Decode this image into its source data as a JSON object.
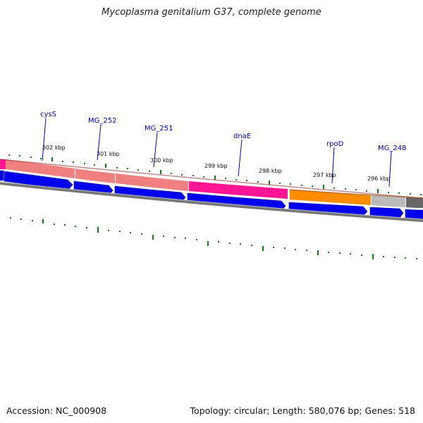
{
  "title": "Mycoplasma genitalium G37, complete genome",
  "accession": "Accession: NC_000908",
  "summary": "Topology: circular; Length: 580,076 bp; Genes: 518",
  "position_labels": [
    {
      "text": "302 kbp",
      "kbp": 302
    },
    {
      "text": "301 kbp",
      "kbp": 301
    },
    {
      "text": "300 kbp",
      "kbp": 300
    },
    {
      "text": "299 kbp",
      "kbp": 299
    },
    {
      "text": "298 kbp",
      "kbp": 298
    },
    {
      "text": "297 kbp",
      "kbp": 297
    },
    {
      "text": "296 kbp",
      "kbp": 296
    }
  ],
  "gene_labels": [
    {
      "text": "cysS"
    },
    {
      "text": "MG_252"
    },
    {
      "text": "MG_251"
    },
    {
      "text": "dnaE"
    },
    {
      "text": "rpoD"
    },
    {
      "text": "MG_248"
    }
  ],
  "colors": {
    "gene_arrow": "#0000ee",
    "label": "#0000aa",
    "tick": "#1a7a1a",
    "backbone": "#777777",
    "cog_pink": "#f08080",
    "cog_magenta": "#ff1493",
    "cog_orange": "#ff8c00",
    "cog_gray": "#bbbbbb",
    "cog_dark": "#666666"
  }
}
